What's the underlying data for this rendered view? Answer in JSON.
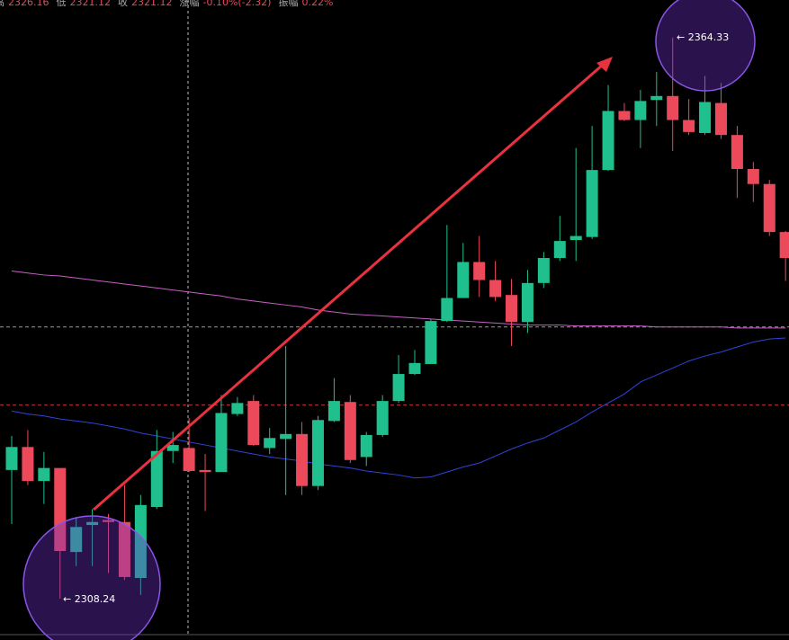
{
  "chart_data": {
    "type": "candlestick",
    "header": [
      {
        "label": "高",
        "value": "2326.16"
      },
      {
        "label": "低",
        "value": "2321.12"
      },
      {
        "label": "收",
        "value": "2321.12"
      },
      {
        "label": "涨幅",
        "value": "-0.10%(-2.32)"
      },
      {
        "label": "振幅",
        "value": "0.22%"
      }
    ],
    "open": [
      2321.1,
      2323.4,
      2320.0,
      2321.3,
      2312.9,
      2315.6,
      2316.1,
      2315.9,
      2310.3,
      2317.4,
      2323.0,
      2323.3,
      2321.1,
      2320.9,
      2326.7,
      2328.0,
      2323.3,
      2324.2,
      2324.7,
      2319.5,
      2326.0,
      2327.9,
      2322.4,
      2324.6,
      2328.0,
      2330.7,
      2331.7,
      2336.0,
      2338.3,
      2341.9,
      2340.1,
      2338.6,
      2335.9,
      2339.8,
      2342.3,
      2344.1,
      2344.4,
      2351.1,
      2357.0,
      2356.1,
      2358.1,
      2358.5,
      2356.1,
      2354.8,
      2357.8,
      2354.6,
      2351.2,
      2349.7,
      2344.9
    ],
    "high": [
      2324.5,
      2325.1,
      2322.9,
      2321.3,
      2316.4,
      2317.2,
      2316.7,
      2319.6,
      2318.6,
      2325.1,
      2324.9,
      2326.3,
      2322.7,
      2328.6,
      2328.4,
      2328.6,
      2325.3,
      2333.5,
      2325.9,
      2326.5,
      2330.3,
      2328.6,
      2324.9,
      2328.6,
      2332.6,
      2333.1,
      2336.2,
      2345.6,
      2343.8,
      2344.5,
      2342.0,
      2340.2,
      2341.1,
      2342.9,
      2346.5,
      2353.3,
      2355.5,
      2359.6,
      2357.8,
      2359.1,
      2360.9,
      2364.33,
      2358.2,
      2360.5,
      2359.8,
      2355.5,
      2351.9,
      2350.1,
      2345.0
    ],
    "low": [
      2315.7,
      2319.6,
      2317.7,
      2308.24,
      2311.5,
      2311.5,
      2310.8,
      2310.1,
      2308.6,
      2317.2,
      2321.8,
      2320.9,
      2317.0,
      2320.9,
      2326.5,
      2323.5,
      2322.7,
      2318.6,
      2318.6,
      2319.1,
      2325.9,
      2321.8,
      2321.5,
      2324.4,
      2327.8,
      2330.6,
      2331.7,
      2335.9,
      2338.3,
      2338.4,
      2338.0,
      2333.5,
      2334.8,
      2339.3,
      2342.0,
      2342.0,
      2344.2,
      2351.0,
      2356.0,
      2353.3,
      2355.5,
      2353.0,
      2354.6,
      2354.6,
      2354.2,
      2348.3,
      2347.9,
      2344.5,
      2340.0
    ],
    "close": [
      2323.4,
      2320.0,
      2321.3,
      2313.0,
      2315.4,
      2315.9,
      2315.9,
      2310.4,
      2317.6,
      2323.0,
      2323.6,
      2321.0,
      2320.9,
      2326.8,
      2327.8,
      2323.6,
      2324.3,
      2324.7,
      2319.5,
      2326.1,
      2328.0,
      2322.1,
      2324.6,
      2328.0,
      2330.7,
      2331.8,
      2336.0,
      2338.3,
      2341.9,
      2340.1,
      2338.4,
      2335.9,
      2339.8,
      2342.3,
      2344.0,
      2344.5,
      2351.1,
      2357.0,
      2356.1,
      2358.0,
      2358.5,
      2356.1,
      2354.9,
      2357.9,
      2354.6,
      2351.2,
      2349.7,
      2344.9,
      2342.3
    ],
    "up_color": "#1fc08e",
    "down_color": "#ec4a5b",
    "ma": [
      {
        "color": "#c85fc8",
        "values": [
          2341.0,
          2340.8,
          2340.6,
          2340.5,
          2340.3,
          2340.1,
          2339.9,
          2339.7,
          2339.5,
          2339.3,
          2339.1,
          2338.9,
          2338.7,
          2338.5,
          2338.2,
          2338.0,
          2337.8,
          2337.6,
          2337.4,
          2337.1,
          2336.9,
          2336.7,
          2336.6,
          2336.5,
          2336.4,
          2336.3,
          2336.2,
          2336.1,
          2336.0,
          2335.9,
          2335.8,
          2335.7,
          2335.6,
          2335.6,
          2335.6,
          2335.5,
          2335.5,
          2335.5,
          2335.5,
          2335.5,
          2335.4,
          2335.4,
          2335.4,
          2335.4,
          2335.4,
          2335.3,
          2335.3,
          2335.3,
          2335.3
        ]
      },
      {
        "color": "#2f44d8",
        "values": [
          2327.0,
          2326.7,
          2326.5,
          2326.2,
          2326.0,
          2325.8,
          2325.5,
          2325.2,
          2324.8,
          2324.5,
          2324.2,
          2323.9,
          2323.6,
          2323.3,
          2323.0,
          2322.7,
          2322.4,
          2322.2,
          2322.0,
          2321.7,
          2321.5,
          2321.3,
          2321.0,
          2320.8,
          2320.6,
          2320.3,
          2320.4,
          2320.9,
          2321.4,
          2321.8,
          2322.5,
          2323.2,
          2323.8,
          2324.3,
          2325.1,
          2325.9,
          2326.9,
          2327.8,
          2328.7,
          2329.9,
          2330.6,
          2331.3,
          2332.0,
          2332.5,
          2332.9,
          2333.4,
          2333.9,
          2334.2,
          2334.3
        ]
      }
    ],
    "hlines": [
      {
        "value": 2335.4,
        "color": "#9a9a9a"
      },
      {
        "value": 2327.6,
        "color": "#c0303a"
      }
    ],
    "annotations": [
      {
        "value": 2364.33,
        "label": "← 2364.33"
      },
      {
        "value": 2308.24,
        "label": "← 2308.24"
      }
    ],
    "ylim": [
      2304.1,
      2368.1
    ]
  }
}
